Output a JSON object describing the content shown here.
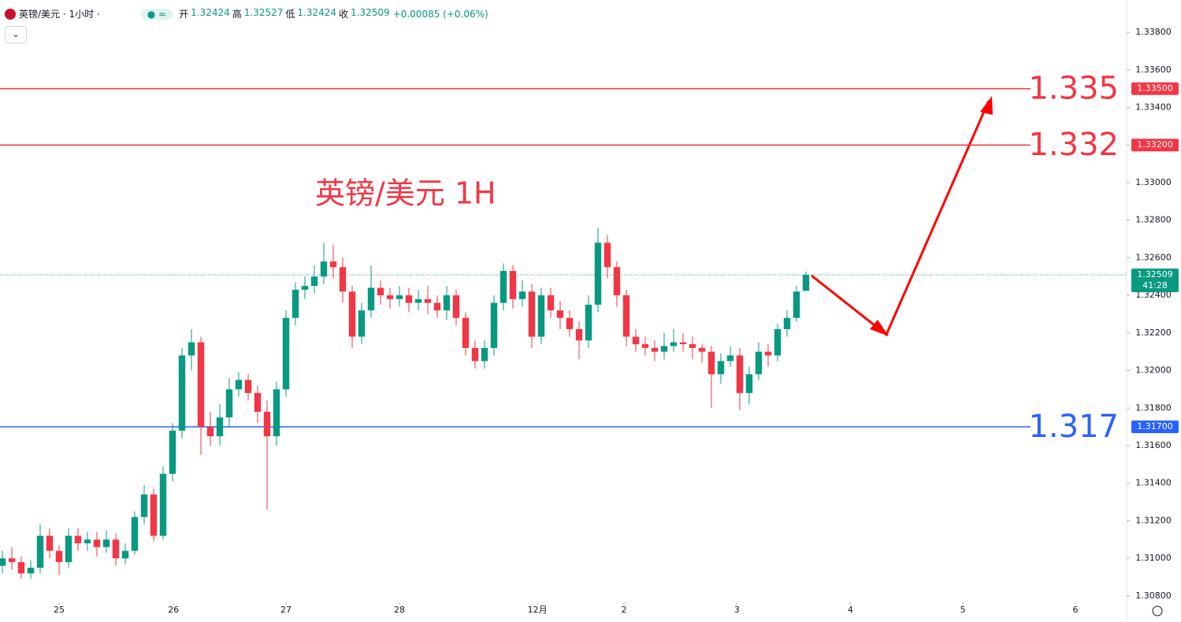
{
  "header": {
    "symbol": "英镑/美元 · 1小时 ·",
    "ohlc": [
      {
        "label": "开",
        "value": "1.32424"
      },
      {
        "label": "高",
        "value": "1.32527"
      },
      {
        "label": "低",
        "value": "1.32424"
      },
      {
        "label": "收",
        "value": "1.32509"
      }
    ],
    "change": "+0.00085 (+0.06%)"
  },
  "chart_data": {
    "type": "candlestick",
    "annotation": "英镑/美元 1H",
    "up_color": "#089981",
    "down_color": "#f23645",
    "open": [
      1.3096,
      1.31,
      1.3098,
      1.3092,
      1.3095,
      1.3112,
      1.3104,
      1.3098,
      1.3112,
      1.3108,
      1.311,
      1.3106,
      1.311,
      1.31,
      1.3104,
      1.3122,
      1.3134,
      1.3112,
      1.3145,
      1.3168,
      1.3208,
      1.3215,
      1.317,
      1.3165,
      1.3175,
      1.319,
      1.3195,
      1.3188,
      1.3178,
      1.3165,
      1.319,
      1.3228,
      1.3243,
      1.3245,
      1.325,
      1.3258,
      1.3255,
      1.3242,
      1.3218,
      1.3232,
      1.3244,
      1.324,
      1.3238,
      1.324,
      1.3236,
      1.3238,
      1.3236,
      1.3232,
      1.324,
      1.3228,
      1.3212,
      1.3205,
      1.3212,
      1.3236,
      1.3253,
      1.3238,
      1.3242,
      1.3218,
      1.324,
      1.3232,
      1.3228,
      1.3222,
      1.3216,
      1.3235,
      1.3268,
      1.3255,
      1.324,
      1.3218,
      1.3214,
      1.3212,
      1.321,
      1.3213,
      1.3215,
      1.3214,
      1.3212,
      1.321,
      1.3198,
      1.3205,
      1.3208,
      1.3188,
      1.3198,
      1.321,
      1.3208,
      1.3222,
      1.3228,
      1.32424
    ],
    "high": [
      1.3104,
      1.3106,
      1.3101,
      1.3099,
      1.3118,
      1.3116,
      1.3107,
      1.3116,
      1.3116,
      1.3114,
      1.3114,
      1.3115,
      1.3113,
      1.3108,
      1.3125,
      1.3139,
      1.3137,
      1.3149,
      1.3172,
      1.3212,
      1.3222,
      1.3218,
      1.3178,
      1.3182,
      1.3196,
      1.3199,
      1.3198,
      1.3192,
      1.3184,
      1.3194,
      1.3232,
      1.3247,
      1.325,
      1.3256,
      1.3268,
      1.3267,
      1.326,
      1.3245,
      1.3236,
      1.3256,
      1.3248,
      1.3244,
      1.3245,
      1.3244,
      1.3243,
      1.3245,
      1.324,
      1.3245,
      1.3243,
      1.3231,
      1.3216,
      1.3216,
      1.324,
      1.3257,
      1.3256,
      1.3248,
      1.3246,
      1.3244,
      1.3244,
      1.3237,
      1.3232,
      1.3226,
      1.324,
      1.3276,
      1.3272,
      1.3258,
      1.3243,
      1.3222,
      1.3218,
      1.3216,
      1.322,
      1.3222,
      1.322,
      1.3218,
      1.3214,
      1.3213,
      1.3209,
      1.3213,
      1.3212,
      1.3202,
      1.3215,
      1.3214,
      1.3225,
      1.3232,
      1.3245,
      1.32527
    ],
    "low": [
      1.3092,
      1.3094,
      1.3089,
      1.3089,
      1.3092,
      1.31,
      1.3091,
      1.3095,
      1.3104,
      1.3104,
      1.3101,
      1.3103,
      1.3096,
      1.3097,
      1.3102,
      1.3118,
      1.3109,
      1.311,
      1.3141,
      1.3164,
      1.32,
      1.3155,
      1.316,
      1.316,
      1.317,
      1.3186,
      1.3184,
      1.3172,
      1.3126,
      1.316,
      1.3186,
      1.3224,
      1.3238,
      1.3241,
      1.3246,
      1.3249,
      1.3236,
      1.3212,
      1.3214,
      1.3228,
      1.3235,
      1.3233,
      1.3234,
      1.3231,
      1.3232,
      1.323,
      1.3228,
      1.3227,
      1.3224,
      1.3208,
      1.3201,
      1.3201,
      1.3208,
      1.3232,
      1.3233,
      1.3234,
      1.3212,
      1.3214,
      1.3228,
      1.3222,
      1.3218,
      1.3206,
      1.3212,
      1.3231,
      1.3249,
      1.3234,
      1.3213,
      1.321,
      1.3208,
      1.3205,
      1.3206,
      1.321,
      1.321,
      1.3206,
      1.3204,
      1.318,
      1.3193,
      1.3202,
      1.3179,
      1.3182,
      1.3195,
      1.3202,
      1.3205,
      1.3218,
      1.3226,
      1.32424
    ],
    "close": [
      1.31,
      1.3098,
      1.3092,
      1.3095,
      1.3112,
      1.3104,
      1.3098,
      1.3112,
      1.3108,
      1.311,
      1.3106,
      1.311,
      1.31,
      1.3104,
      1.3122,
      1.3134,
      1.3112,
      1.3145,
      1.3168,
      1.3208,
      1.3215,
      1.317,
      1.3165,
      1.3175,
      1.319,
      1.3195,
      1.3188,
      1.3178,
      1.3165,
      1.319,
      1.3228,
      1.3243,
      1.3245,
      1.325,
      1.3258,
      1.3255,
      1.3242,
      1.3218,
      1.3232,
      1.3244,
      1.324,
      1.3238,
      1.324,
      1.3236,
      1.3238,
      1.3236,
      1.3232,
      1.324,
      1.3228,
      1.3212,
      1.3205,
      1.3212,
      1.3236,
      1.3253,
      1.3238,
      1.3242,
      1.3218,
      1.324,
      1.3232,
      1.3228,
      1.3222,
      1.3216,
      1.3235,
      1.3268,
      1.3255,
      1.324,
      1.3218,
      1.3214,
      1.3212,
      1.321,
      1.3213,
      1.3215,
      1.3214,
      1.3212,
      1.321,
      1.3198,
      1.3205,
      1.3208,
      1.3188,
      1.3198,
      1.321,
      1.3208,
      1.3222,
      1.3228,
      1.3242,
      1.32509
    ],
    "xlim": [
      -0.25,
      118.92
    ],
    "xticks": [
      {
        "value": 6,
        "label": "25"
      },
      {
        "value": 18.1,
        "label": "26"
      },
      {
        "value": 30,
        "label": "27"
      },
      {
        "value": 42,
        "label": "28"
      },
      {
        "value": 56.6,
        "label": "12月"
      },
      {
        "value": 65.75,
        "label": "2"
      },
      {
        "value": 77.7,
        "label": "3"
      },
      {
        "value": 89.7,
        "label": "4"
      },
      {
        "value": 101.6,
        "label": "5"
      },
      {
        "value": 113.5,
        "label": "6"
      }
    ],
    "ylim": [
      1.30766,
      1.33972
    ],
    "yticks": [
      {
        "value": 1.308,
        "label": "1.30800"
      },
      {
        "value": 1.31,
        "label": "1.31000"
      },
      {
        "value": 1.312,
        "label": "1.31200"
      },
      {
        "value": 1.314,
        "label": "1.31400"
      },
      {
        "value": 1.316,
        "label": "1.31600"
      },
      {
        "value": 1.318,
        "label": "1.31800"
      },
      {
        "value": 1.32,
        "label": "1.32000"
      },
      {
        "value": 1.322,
        "label": "1.32200"
      },
      {
        "value": 1.324,
        "label": "1.32400"
      },
      {
        "value": 1.326,
        "label": "1.32600"
      },
      {
        "value": 1.328,
        "label": "1.32800"
      },
      {
        "value": 1.33,
        "label": "1.33000"
      },
      {
        "value": 1.332,
        "label": "1.33200"
      },
      {
        "value": 1.334,
        "label": "1.33400"
      },
      {
        "value": 1.336,
        "label": "1.33600"
      },
      {
        "value": 1.338,
        "label": "1.33800"
      }
    ],
    "levels": [
      {
        "value": 1.335,
        "label": "1.335",
        "axis_label": "1.33500",
        "color": "#f23645"
      },
      {
        "value": 1.332,
        "label": "1.332",
        "axis_label": "1.33200",
        "color": "#f23645"
      },
      {
        "value": 1.317,
        "label": "1.317",
        "axis_label": "1.31700",
        "color": "#2962ff"
      }
    ],
    "last_price": {
      "value": 1.32509,
      "label": "1.32509",
      "countdown": "41:28",
      "color": "#089981"
    }
  }
}
